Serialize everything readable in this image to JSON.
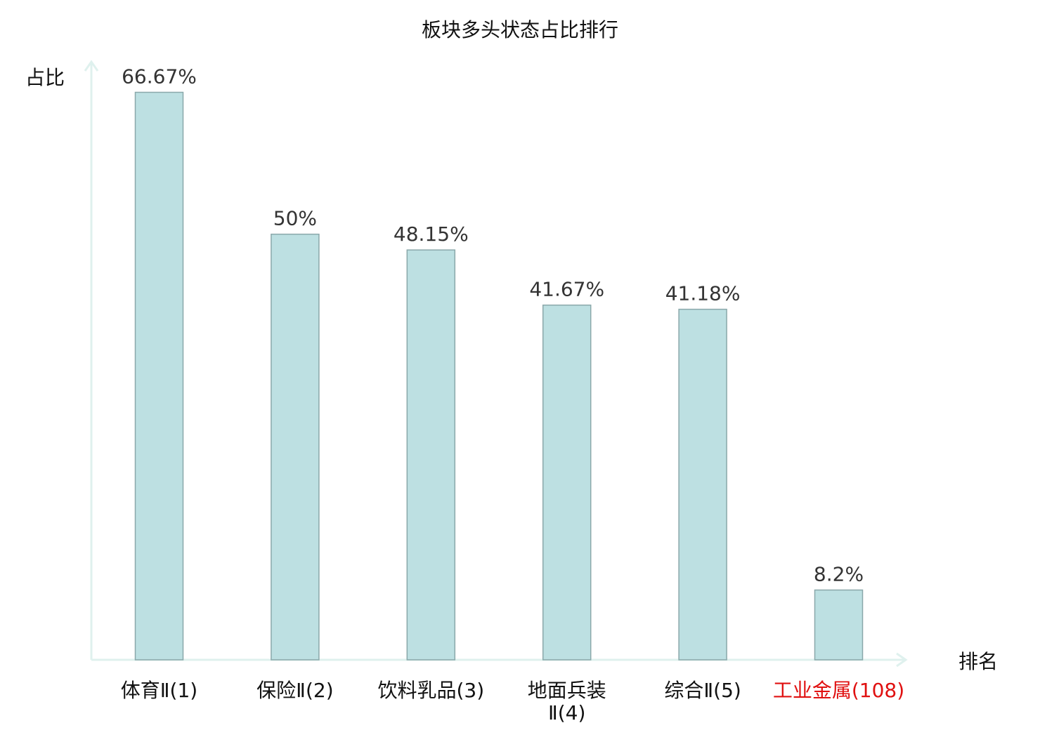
{
  "chart_data": {
    "type": "bar",
    "title": "板块多头状态占比排行",
    "ylabel": "占比",
    "xlabel": "排名",
    "ylim": [
      0,
      70
    ],
    "grid": false,
    "categories": [
      [
        "体育Ⅱ(1)"
      ],
      [
        "保险Ⅱ(2)"
      ],
      [
        "饮料乳品(3)"
      ],
      [
        "地面兵装",
        "Ⅱ(4)"
      ],
      [
        "综合Ⅱ(5)"
      ],
      [
        "工业金属(108)"
      ]
    ],
    "values": [
      66.67,
      50,
      48.15,
      41.67,
      41.18,
      8.2
    ],
    "value_labels": [
      "66.67%",
      "50%",
      "48.15%",
      "41.67%",
      "41.18%",
      "8.2%"
    ],
    "highlight_index": 5
  },
  "colors": {
    "bar_fill": "#bde0e2",
    "bar_stroke": "#8aa8aa",
    "axis": "#dff1ee",
    "label": "#333333",
    "category_text": "#111111",
    "highlight": "#e01010"
  }
}
